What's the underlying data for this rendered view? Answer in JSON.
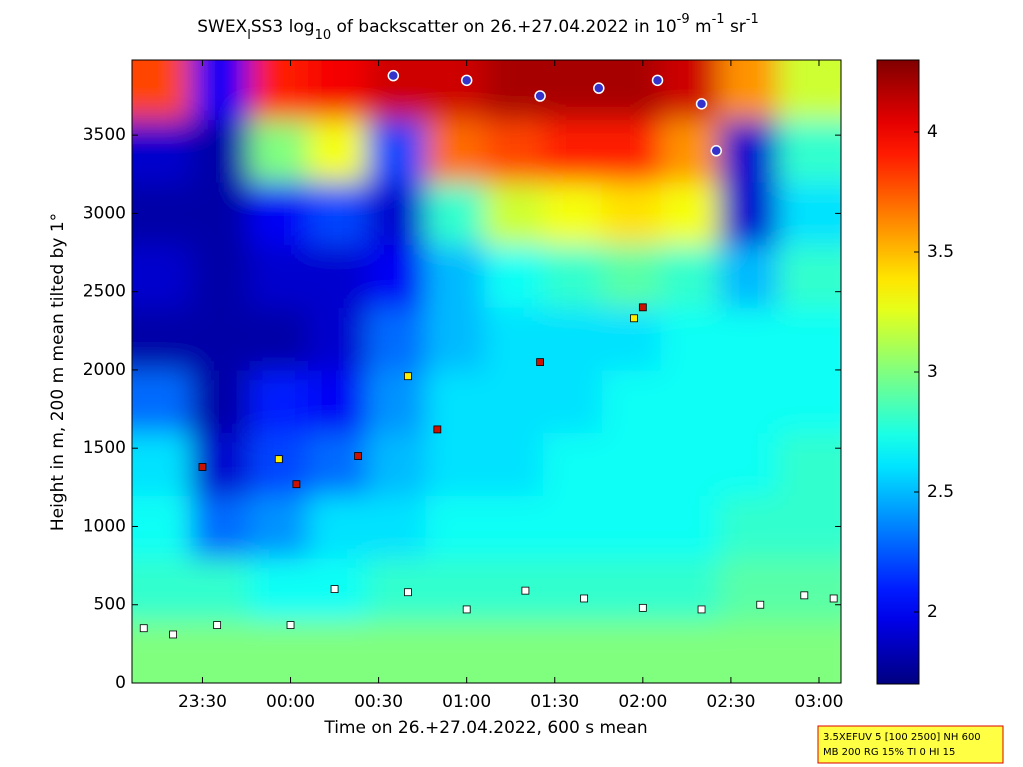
{
  "chart_data": {
    "type": "heatmap",
    "title_parts": [
      "SWEX",
      "l",
      "SS3 log",
      "10",
      " of backscatter on 26.+27.04.2022 in 10",
      "-9",
      " m",
      "-1",
      " sr",
      "-1"
    ],
    "xlabel": "Time on 26.+27.04.2022, 600 s mean",
    "ylabel": "Height in m, 200 m mean tilted by 1°",
    "xlim": [
      6,
      247.5
    ],
    "xticks": [
      {
        "value": 30,
        "label": "23:30"
      },
      {
        "value": 60,
        "label": "00:00"
      },
      {
        "value": 90,
        "label": "00:30"
      },
      {
        "value": 120,
        "label": "01:00"
      },
      {
        "value": 150,
        "label": "01:30"
      },
      {
        "value": 180,
        "label": "02:00"
      },
      {
        "value": 210,
        "label": "02:30"
      },
      {
        "value": 240,
        "label": "03:00"
      }
    ],
    "ylim": [
      0,
      3980
    ],
    "yticks": [
      0,
      500,
      1000,
      1500,
      2000,
      2500,
      3000,
      3500
    ],
    "clim": [
      1.7,
      4.3
    ],
    "cticks": [
      2,
      2.5,
      3,
      3.5,
      4
    ],
    "x": [
      16,
      36,
      56,
      76,
      96,
      116,
      136,
      156,
      176,
      196,
      216,
      236
    ],
    "y": [
      200,
      600,
      1000,
      1400,
      1800,
      2200,
      2600,
      3000,
      3400,
      3800
    ],
    "z": [
      [
        3.0,
        3.0,
        3.0,
        3.0,
        3.0,
        3.0,
        3.0,
        3.0,
        3.0,
        3.0,
        3.0,
        3.0
      ],
      [
        2.8,
        2.8,
        2.7,
        2.7,
        2.8,
        2.8,
        2.8,
        2.8,
        2.8,
        2.8,
        2.9,
        2.9
      ],
      [
        2.7,
        2.3,
        2.4,
        2.6,
        2.6,
        2.7,
        2.7,
        2.7,
        2.7,
        2.7,
        2.8,
        2.8
      ],
      [
        2.6,
        1.9,
        2.2,
        2.3,
        2.5,
        2.6,
        2.6,
        2.7,
        2.7,
        2.7,
        2.7,
        2.8
      ],
      [
        2.3,
        1.8,
        2.1,
        2.0,
        2.4,
        2.6,
        2.6,
        2.6,
        2.7,
        2.7,
        2.7,
        2.7
      ],
      [
        1.8,
        1.8,
        1.8,
        1.9,
        2.3,
        2.5,
        2.6,
        2.6,
        2.6,
        2.7,
        2.7,
        2.7
      ],
      [
        1.9,
        1.8,
        1.9,
        1.9,
        2.0,
        2.5,
        2.7,
        2.8,
        2.9,
        2.8,
        2.5,
        2.8
      ],
      [
        1.8,
        1.8,
        2.0,
        2.2,
        1.9,
        2.8,
        3.2,
        3.3,
        3.4,
        3.3,
        1.9,
        2.6
      ],
      [
        1.9,
        1.8,
        3.0,
        3.3,
        2.2,
        3.7,
        3.8,
        3.9,
        3.9,
        3.6,
        1.9,
        2.8
      ],
      [
        3.8,
        2.0,
        3.9,
        4.0,
        4.1,
        4.1,
        4.2,
        4.2,
        4.2,
        4.1,
        3.6,
        3.2
      ]
    ],
    "markers": [
      {
        "shape": "square",
        "color": "#ffffff",
        "x": [
          10,
          20,
          35,
          60,
          75,
          100,
          120,
          140,
          160,
          180,
          200,
          220,
          235,
          245
        ],
        "y": [
          350,
          310,
          370,
          370,
          600,
          580,
          470,
          590,
          540,
          480,
          470,
          500,
          560,
          540
        ]
      },
      {
        "shape": "square",
        "color": "#cc1100",
        "x": [
          30,
          62,
          83,
          110,
          145,
          180
        ],
        "y": [
          1380,
          1270,
          1450,
          1620,
          2050,
          2400
        ]
      },
      {
        "shape": "square",
        "color": "#ffee00",
        "x": [
          56,
          100,
          177
        ],
        "y": [
          1430,
          1960,
          2330
        ]
      },
      {
        "shape": "circle",
        "color": "#3333cc",
        "x": [
          95,
          120,
          145,
          165,
          185,
          200,
          205
        ],
        "y": [
          3880,
          3850,
          3750,
          3800,
          3850,
          3700,
          3400
        ]
      }
    ],
    "note_lines": [
      "3.5XEFUV 5 [100 2500] NH 600",
      "MB 200 RG 15% TI 0 HI 15"
    ]
  }
}
